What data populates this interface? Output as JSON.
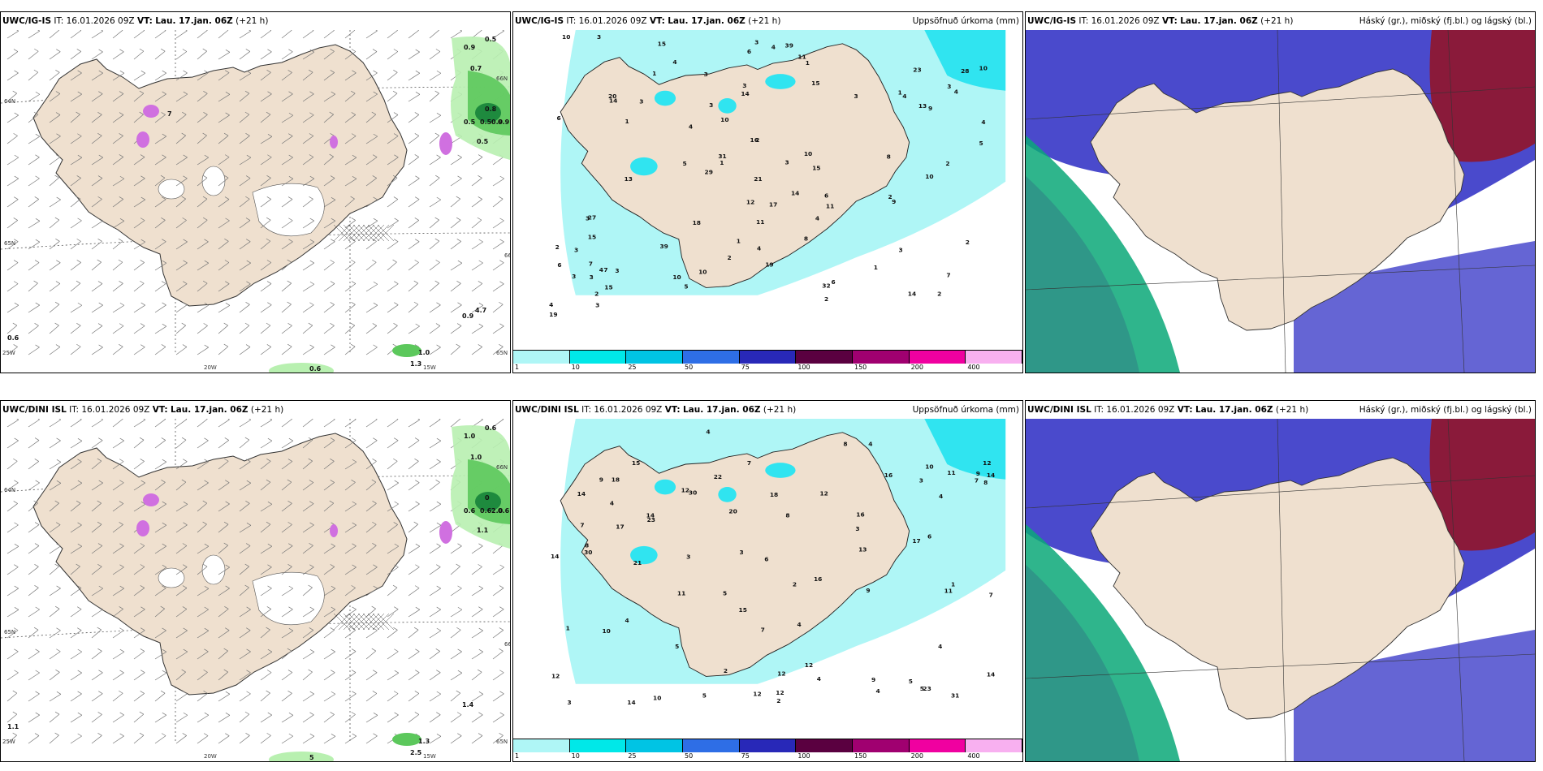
{
  "rows": [
    {
      "model": "UWC/IG-IS",
      "panels": [
        {
          "type": "wind-precip",
          "right_label": "",
          "overlays": [
            "0.5",
            "0.9",
            "0.7",
            "0.8",
            "0.5",
            "0.5",
            "0.9",
            "0.9",
            "0.5",
            "0.6",
            "0.9",
            "1.0",
            "1.3",
            "0.6",
            "7",
            "4.7"
          ],
          "ticks": [
            "20W",
            "15W",
            "25W",
            "64N",
            "65N",
            "66N",
            "66N",
            "65N",
            "64N"
          ]
        },
        {
          "type": "accum",
          "right_label": "Uppsöfnuð úrkoma (mm)",
          "overlays": [
            "1",
            "2",
            "1",
            "14",
            "15",
            "14",
            "15",
            "10",
            "18",
            "28",
            "4",
            "4",
            "20",
            "10",
            "10",
            "11",
            "15",
            "13",
            "39",
            "32",
            "27",
            "31",
            "8",
            "16",
            "12",
            "7",
            "39",
            "3",
            "29",
            "23",
            "14",
            "11",
            "19",
            "15",
            "8",
            "15",
            "17",
            "19",
            "21",
            "11",
            "7",
            "3",
            "5",
            "13",
            "10",
            "9",
            "10",
            "6",
            "6",
            "6",
            "5",
            "4",
            "3",
            "2",
            "7",
            "3",
            "4",
            "3",
            "3",
            "3",
            "3",
            "4",
            "2",
            "4",
            "3",
            "3",
            "3",
            "4",
            "3",
            "2",
            "2",
            "3",
            "1",
            "1",
            "3",
            "3",
            "2",
            "2",
            "4",
            "1",
            "10",
            "6",
            "6",
            "14",
            "9",
            "4",
            "2",
            "5",
            "4",
            "2",
            "10",
            "1",
            "1",
            "3"
          ]
        },
        {
          "type": "clouds",
          "right_label": "Háský (gr.), miðský (fj.bl.) og lágský (bl.)",
          "overlays": []
        }
      ]
    },
    {
      "model": "UWC/DINI ISL",
      "panels": [
        {
          "type": "wind-precip",
          "right_label": "",
          "overlays": [
            "0.6",
            "1.0",
            "1.0",
            "0",
            "0.6",
            "0.6",
            "0.6",
            "2.0",
            "1.1",
            "1.1",
            "1.4",
            "1.3",
            "2.5",
            "5"
          ],
          "ticks": [
            "20W",
            "15W",
            "25W",
            "64N",
            "65N",
            "66N",
            "66N",
            "65N",
            "64N"
          ]
        },
        {
          "type": "accum",
          "right_label": "Uppsöfnuð úrkoma (mm)",
          "overlays": [
            "2",
            "12",
            "12",
            "12",
            "9",
            "23",
            "12",
            "14",
            "15",
            "18",
            "21",
            "7",
            "7",
            "8",
            "4",
            "6",
            "15",
            "30",
            "16",
            "23",
            "17",
            "12",
            "22",
            "12",
            "14",
            "9",
            "10",
            "17",
            "20",
            "16",
            "14",
            "12",
            "9",
            "30",
            "9",
            "10",
            "8",
            "11",
            "11",
            "16",
            "13",
            "5",
            "7",
            "4",
            "6",
            "3",
            "5",
            "1",
            "4",
            "4",
            "8",
            "14",
            "2",
            "1",
            "3",
            "4",
            "3",
            "4",
            "3",
            "7",
            "5",
            "7",
            "12",
            "4",
            "5",
            "4",
            "3",
            "4",
            "11",
            "2",
            "18",
            "31",
            "14",
            "14",
            "10",
            "8",
            "5"
          ]
        },
        {
          "type": "clouds",
          "right_label": "Háský (gr.), miðský (fj.bl.) og lágský (bl.)",
          "overlays": []
        }
      ]
    }
  ],
  "it_label": "IT: 16.01.2026 09Z",
  "vt_prefix": "VT:",
  "vt_label": "Lau. 17.jan. 06Z",
  "lead_label": "(+21 h)",
  "legend": {
    "labels": [
      "1",
      "10",
      "25",
      "50",
      "75",
      "100",
      "150",
      "200",
      "400"
    ],
    "colors": [
      "#aff6f6",
      "#00e8e8",
      "#00c4e4",
      "#2e6ee6",
      "#2828b8",
      "#5a0040",
      "#a00070",
      "#f000a0",
      "#f8b0f0"
    ]
  },
  "colors": {
    "land": "#efe0cf",
    "wind_precip_light": "#b8f0b0",
    "wind_precip_mid": "#5cc85c",
    "wind_precip_dark": "#1e8a3e",
    "magenta": "#d070e0",
    "accum_light": "#aff6f6",
    "accum_mid": "#30e4f0",
    "cloud_low": "#4a4acc",
    "cloud_mid": "#6464d8",
    "cloud_high": "#8a1a3a",
    "cloud_green": "#0aa878"
  }
}
